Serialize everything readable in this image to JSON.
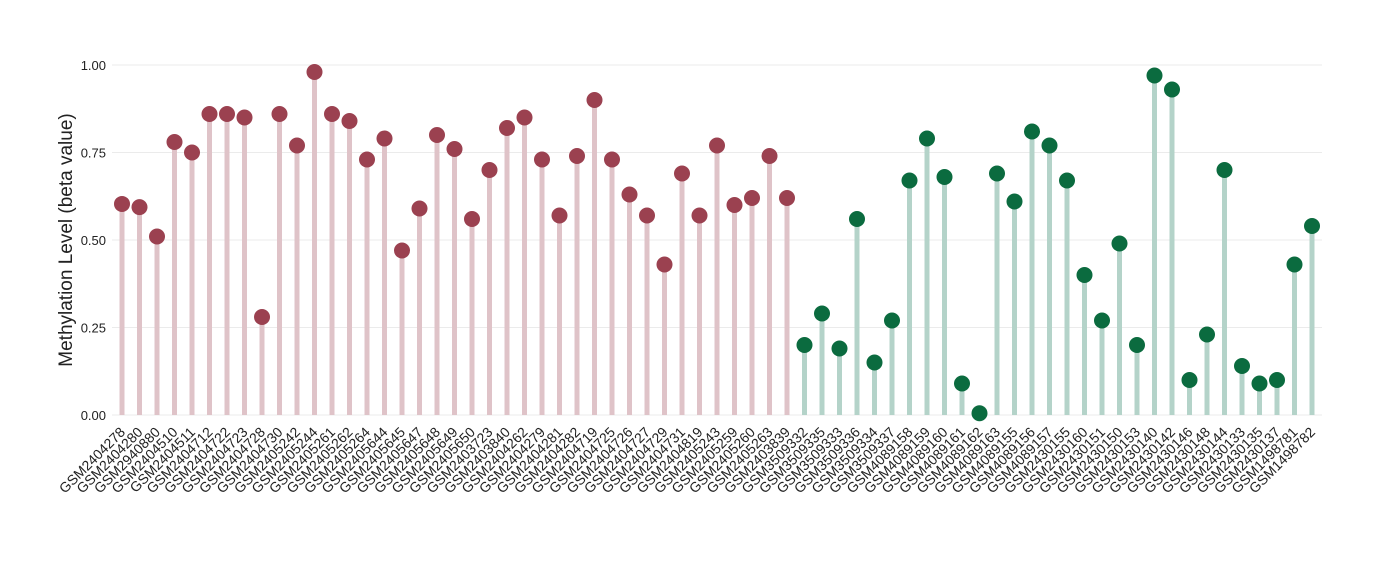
{
  "chart_data": {
    "type": "lollipop",
    "ylabel": "Methylation Level (beta value)",
    "categories": [
      "GSM2404278",
      "GSM2404280",
      "GSM2940880",
      "GSM2404510",
      "GSM2404511",
      "GSM2404712",
      "GSM2404722",
      "GSM2404723",
      "GSM2404728",
      "GSM2404730",
      "GSM2405242",
      "GSM2405244",
      "GSM2405261",
      "GSM2405262",
      "GSM2405264",
      "GSM2405644",
      "GSM2405645",
      "GSM2405647",
      "GSM2405648",
      "GSM2405649",
      "GSM2405650",
      "GSM2403723",
      "GSM2403840",
      "GSM2404262",
      "GSM2404279",
      "GSM2404281",
      "GSM2404282",
      "GSM2404719",
      "GSM2404725",
      "GSM2404726",
      "GSM2404727",
      "GSM2404729",
      "GSM2404731",
      "GSM2404819",
      "GSM2405243",
      "GSM2405259",
      "GSM2405260",
      "GSM2405263",
      "GSM2403839",
      "GSM3509332",
      "GSM3509335",
      "GSM3509333",
      "GSM3509336",
      "GSM3509334",
      "GSM3509337",
      "GSM4089158",
      "GSM4089159",
      "GSM4089160",
      "GSM4089161",
      "GSM4089162",
      "GSM4089163",
      "GSM4089155",
      "GSM4089156",
      "GSM4089157",
      "GSM2430155",
      "GSM2430160",
      "GSM2430151",
      "GSM2430150",
      "GSM2430153",
      "GSM2430140",
      "GSM2430142",
      "GSM2430146",
      "GSM2430148",
      "GSM2430144",
      "GSM2430133",
      "GSM2430135",
      "GSM2430137",
      "GSM1498781",
      "GSM1498782"
    ],
    "series": [
      {
        "color": "#9b4150",
        "stem_color": "#dfc3c8",
        "values": [
          0.603,
          0.594,
          0.51,
          0.78,
          0.75,
          0.86,
          0.86,
          0.85,
          0.28,
          0.86,
          0.77,
          0.98,
          0.86,
          0.84,
          0.73,
          0.79,
          0.47,
          0.59,
          0.8,
          0.76,
          0.56,
          0.7,
          0.82,
          0.85,
          0.73,
          0.57,
          0.74,
          0.9,
          0.73,
          0.63,
          0.57,
          0.43,
          0.69,
          0.57,
          0.77,
          0.6,
          0.62,
          0.74,
          0.62,
          null,
          null,
          null,
          null,
          null,
          null,
          null,
          null,
          null,
          null,
          null,
          null,
          null,
          null,
          null,
          null,
          null,
          null,
          null,
          null,
          null,
          null,
          null,
          null,
          null,
          null,
          null,
          null,
          null,
          null
        ]
      },
      {
        "color": "#0b6b3f",
        "stem_color": "#b4d3c9",
        "values": [
          null,
          null,
          null,
          null,
          null,
          null,
          null,
          null,
          null,
          null,
          null,
          null,
          null,
          null,
          null,
          null,
          null,
          null,
          null,
          null,
          null,
          null,
          null,
          null,
          null,
          null,
          null,
          null,
          null,
          null,
          null,
          null,
          null,
          null,
          null,
          null,
          null,
          null,
          null,
          0.2,
          0.29,
          0.19,
          0.56,
          0.15,
          0.27,
          0.67,
          0.79,
          0.68,
          0.09,
          0.005,
          0.69,
          0.61,
          0.81,
          0.77,
          0.67,
          0.4,
          0.27,
          0.49,
          0.2,
          0.97,
          0.93,
          0.1,
          0.23,
          0.7,
          0.14,
          0.09,
          0.1,
          0.43,
          0.54
        ]
      }
    ],
    "ylim": [
      0,
      1
    ],
    "yticks": [
      {
        "value": 0,
        "label": "0.00"
      },
      {
        "value": 0.25,
        "label": "0.25"
      },
      {
        "value": 0.5,
        "label": "0.50"
      },
      {
        "value": 0.75,
        "label": "0.75"
      },
      {
        "value": 1,
        "label": "1.00"
      }
    ],
    "grid": true
  }
}
